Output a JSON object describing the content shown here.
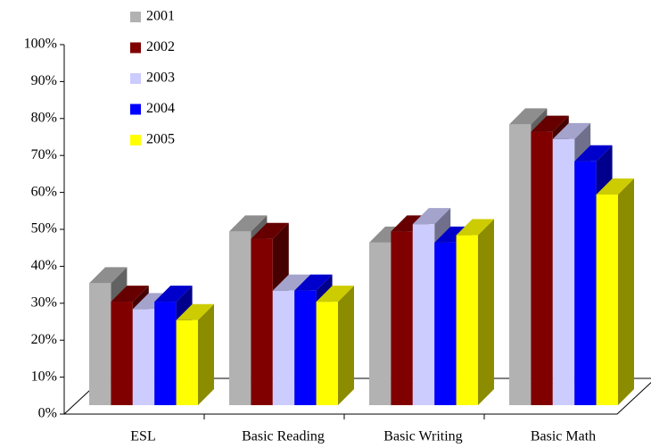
{
  "chart_data": {
    "type": "bar3d",
    "categories": [
      "ESL",
      "Basic Reading",
      "Basic Writing",
      "Basic Math"
    ],
    "series": [
      {
        "name": "2001",
        "color": "#b2b2b2",
        "values": [
          33,
          47,
          44,
          76
        ]
      },
      {
        "name": "2002",
        "color": "#800000",
        "values": [
          28,
          45,
          47,
          74
        ]
      },
      {
        "name": "2003",
        "color": "#ccccff",
        "values": [
          26,
          31,
          49,
          72
        ]
      },
      {
        "name": "2004",
        "color": "#0000ff",
        "values": [
          28,
          31,
          44,
          66
        ]
      },
      {
        "name": "2005",
        "color": "#ffff00",
        "values": [
          23,
          28,
          46,
          57
        ]
      }
    ],
    "ylim": [
      0,
      100
    ],
    "yticks": [
      {
        "value": 0,
        "label": "0%"
      },
      {
        "value": 10,
        "label": "10%"
      },
      {
        "value": 20,
        "label": "20%"
      },
      {
        "value": 30,
        "label": "30%"
      },
      {
        "value": 40,
        "label": "40%"
      },
      {
        "value": 50,
        "label": "50%"
      },
      {
        "value": 60,
        "label": "60%"
      },
      {
        "value": 70,
        "label": "70%"
      },
      {
        "value": 80,
        "label": "80%"
      },
      {
        "value": 90,
        "label": "90%"
      },
      {
        "value": 100,
        "label": "100%"
      }
    ],
    "legend": "top-left"
  }
}
